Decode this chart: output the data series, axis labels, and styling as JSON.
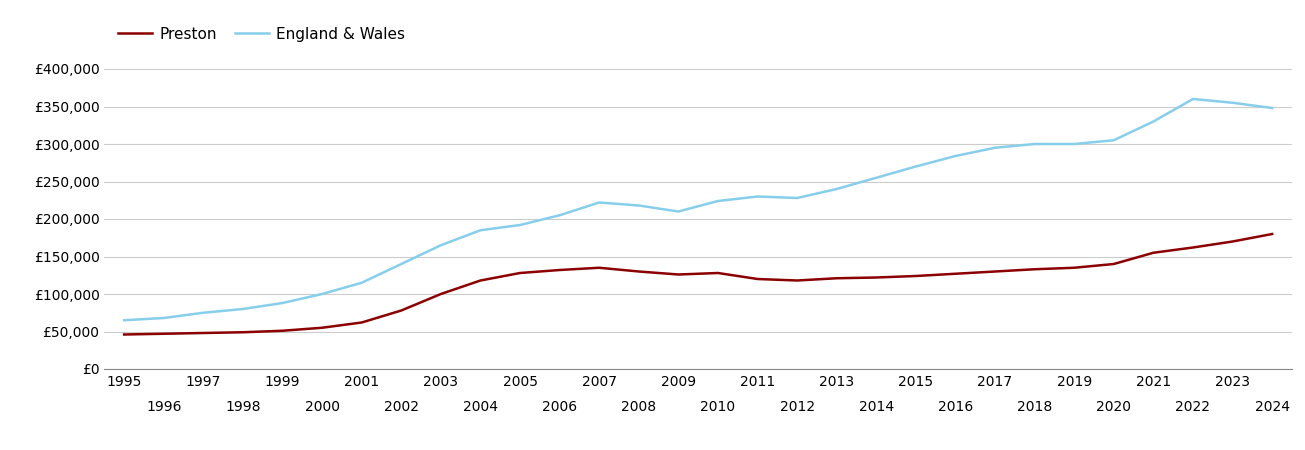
{
  "preston": {
    "years": [
      1995,
      1996,
      1997,
      1998,
      1999,
      2000,
      2001,
      2002,
      2003,
      2004,
      2005,
      2006,
      2007,
      2008,
      2009,
      2010,
      2011,
      2012,
      2013,
      2014,
      2015,
      2016,
      2017,
      2018,
      2019,
      2020,
      2021,
      2022,
      2023,
      2024
    ],
    "values": [
      46000,
      47000,
      48000,
      49000,
      51000,
      55000,
      62000,
      78000,
      100000,
      118000,
      128000,
      132000,
      135000,
      130000,
      126000,
      128000,
      120000,
      118000,
      121000,
      122000,
      124000,
      127000,
      130000,
      133000,
      135000,
      140000,
      155000,
      162000,
      170000,
      180000
    ]
  },
  "england_wales": {
    "years": [
      1995,
      1996,
      1997,
      1998,
      1999,
      2000,
      2001,
      2002,
      2003,
      2004,
      2005,
      2006,
      2007,
      2008,
      2009,
      2010,
      2011,
      2012,
      2013,
      2014,
      2015,
      2016,
      2017,
      2018,
      2019,
      2020,
      2021,
      2022,
      2023,
      2024
    ],
    "values": [
      65000,
      68000,
      75000,
      80000,
      88000,
      100000,
      115000,
      140000,
      165000,
      185000,
      192000,
      205000,
      222000,
      218000,
      210000,
      224000,
      230000,
      228000,
      240000,
      255000,
      270000,
      284000,
      295000,
      300000,
      300000,
      305000,
      330000,
      360000,
      355000,
      348000
    ]
  },
  "preston_color": "#8B0000",
  "england_wales_color": "#87CEEB",
  "background_color": "#ffffff",
  "grid_color": "#cccccc",
  "legend_labels": [
    "Preston",
    "England & Wales"
  ],
  "ylim": [
    0,
    420000
  ],
  "yticks": [
    0,
    50000,
    100000,
    150000,
    200000,
    250000,
    300000,
    350000,
    400000
  ],
  "xlim": [
    1994.5,
    2024.5
  ],
  "odd_xticks": [
    1995,
    1997,
    1999,
    2001,
    2003,
    2005,
    2007,
    2009,
    2011,
    2013,
    2015,
    2017,
    2019,
    2021,
    2023
  ],
  "even_xticks": [
    1996,
    1998,
    2000,
    2002,
    2004,
    2006,
    2008,
    2010,
    2012,
    2014,
    2016,
    2018,
    2020,
    2022,
    2024
  ],
  "line_width": 1.8
}
